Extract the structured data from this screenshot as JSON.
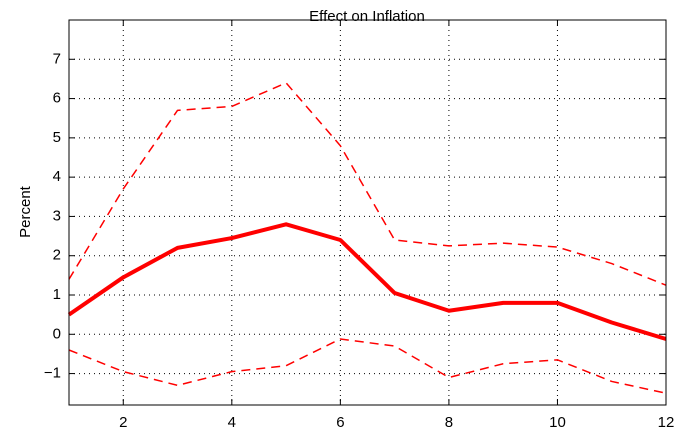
{
  "chart_data": {
    "type": "line",
    "title": "Effect on Inflation",
    "y_label": "Percent",
    "x": [
      1,
      2,
      3,
      4,
      5,
      6,
      7,
      8,
      9,
      10,
      11,
      12
    ],
    "series": [
      {
        "color": "#ff0000",
        "dashed": true,
        "values": [
          1.4,
          3.7,
          5.7,
          5.8,
          6.4,
          4.8,
          2.4,
          2.25,
          2.32,
          2.22,
          1.8,
          1.25
        ]
      },
      {
        "color": "#ff0000",
        "dashed": false,
        "values": [
          0.5,
          1.45,
          2.2,
          2.45,
          2.8,
          2.4,
          1.05,
          0.6,
          0.8,
          0.8,
          0.3,
          -0.12
        ]
      },
      {
        "color": "#ff0000",
        "dashed": true,
        "values": [
          -0.4,
          -0.95,
          -1.3,
          -0.95,
          -0.8,
          -0.12,
          -0.3,
          -1.1,
          -0.75,
          -0.65,
          -1.2,
          -1.5
        ]
      }
    ],
    "xlim": [
      1,
      12
    ],
    "xticks": [
      2,
      4,
      6,
      8,
      10,
      12
    ],
    "ylim": [
      -1.8,
      8
    ],
    "yticks": [
      {
        "value": -1,
        "label": "−1"
      },
      0,
      1,
      2,
      3,
      4,
      5,
      6,
      7
    ],
    "grid": true
  }
}
